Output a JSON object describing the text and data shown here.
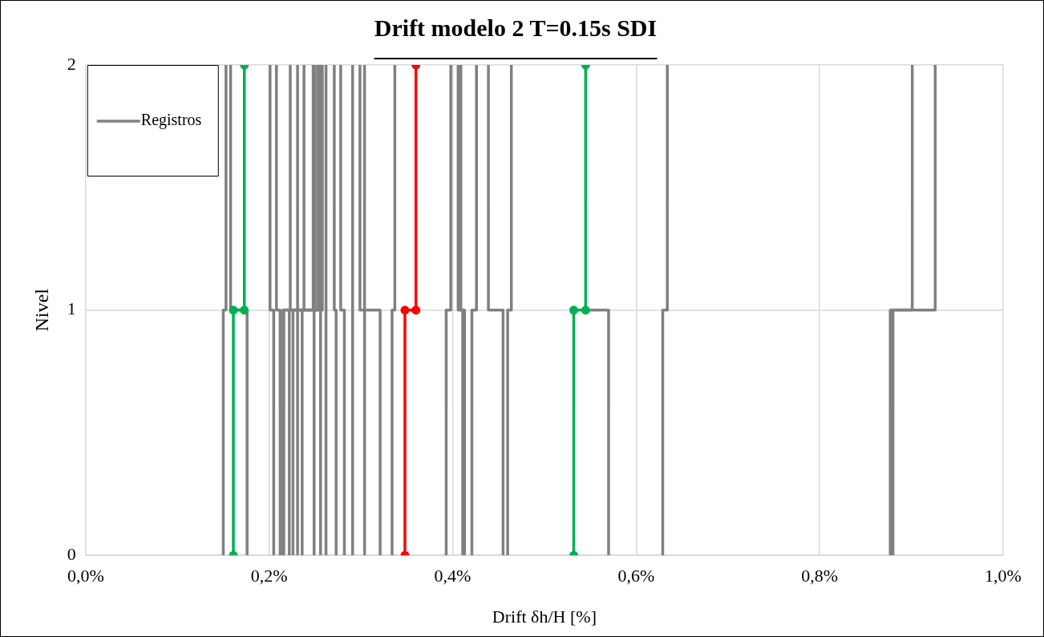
{
  "chart_data": {
    "type": "line",
    "title": "Drift modelo 2 T=0.15s SDI",
    "xlabel": "Drift δh/H [%]",
    "ylabel": "Nivel",
    "xlim": [
      0,
      1
    ],
    "xticks": [
      {
        "value": 0,
        "label": "0,0%"
      },
      {
        "value": 0.2,
        "label": "0,2%"
      },
      {
        "value": 0.4,
        "label": "0,4%"
      },
      {
        "value": 0.6,
        "label": "0,6%"
      },
      {
        "value": 0.8,
        "label": "0,8%"
      },
      {
        "value": 1,
        "label": "1,0%"
      }
    ],
    "ylim": [
      0,
      2
    ],
    "yticks": [
      0,
      1,
      2
    ],
    "grid": true,
    "legend": "top left",
    "line_style": "solid",
    "series": [
      {
        "name": "Registros",
        "color": "#808080",
        "marker": "none",
        "x": [
          0.15,
          0.15,
          0.153,
          0.153
        ],
        "values": [
          0,
          1,
          1,
          2
        ]
      },
      {
        "color": "#808080",
        "marker": "none",
        "x": [
          0.176,
          0.176,
          0.158,
          0.158
        ],
        "values": [
          0,
          1,
          1,
          2
        ]
      },
      {
        "color": "#808080",
        "marker": "none",
        "x": [
          0.205,
          0.205,
          0.201,
          0.201
        ],
        "values": [
          0,
          1,
          1,
          2
        ]
      },
      {
        "color": "#808080",
        "marker": "none",
        "x": [
          0.212,
          0.212,
          0.208,
          0.208
        ],
        "values": [
          0,
          1,
          1,
          2
        ]
      },
      {
        "color": "#808080",
        "marker": "none",
        "x": [
          0.215,
          0.215,
          0.223,
          0.223
        ],
        "values": [
          0,
          1,
          1,
          2
        ]
      },
      {
        "color": "#808080",
        "marker": "none",
        "x": [
          0.216,
          0.216,
          0.231,
          0.231
        ],
        "values": [
          0,
          1,
          1,
          2
        ]
      },
      {
        "color": "#808080",
        "marker": "none",
        "x": [
          0.222,
          0.222,
          0.238,
          0.238
        ],
        "values": [
          0,
          1,
          1,
          2
        ]
      },
      {
        "color": "#808080",
        "marker": "none",
        "x": [
          0.226,
          0.226,
          0.248,
          0.248
        ],
        "values": [
          0,
          1,
          1,
          2
        ]
      },
      {
        "color": "#808080",
        "marker": "none",
        "x": [
          0.231,
          0.231,
          0.25,
          0.25
        ],
        "values": [
          0,
          1,
          1,
          2
        ]
      },
      {
        "color": "#808080",
        "marker": "none",
        "x": [
          0.236,
          0.236,
          0.253,
          0.253
        ],
        "values": [
          0,
          1,
          1,
          2
        ]
      },
      {
        "color": "#808080",
        "marker": "none",
        "x": [
          0.249,
          0.249,
          0.256,
          0.256
        ],
        "values": [
          0,
          1,
          1,
          2
        ]
      },
      {
        "color": "#808080",
        "marker": "none",
        "x": [
          0.256,
          0.256,
          0.258,
          0.258
        ],
        "values": [
          0,
          1,
          1,
          2
        ]
      },
      {
        "color": "#808080",
        "marker": "none",
        "x": [
          0.262,
          0.262,
          0.262,
          0.262
        ],
        "values": [
          0,
          1,
          1,
          2
        ]
      },
      {
        "color": "#808080",
        "marker": "none",
        "x": [
          0.273,
          0.273,
          0.271,
          0.271
        ],
        "values": [
          0,
          1,
          1,
          2
        ]
      },
      {
        "color": "#808080",
        "marker": "none",
        "x": [
          0.282,
          0.282,
          0.278,
          0.278
        ],
        "values": [
          0,
          1,
          1,
          2
        ]
      },
      {
        "color": "#808080",
        "marker": "none",
        "x": [
          0.291,
          0.291,
          0.291,
          0.291
        ],
        "values": [
          0,
          1,
          1,
          2
        ]
      },
      {
        "color": "#808080",
        "marker": "none",
        "x": [
          0.304,
          0.304,
          0.299,
          0.299
        ],
        "values": [
          0,
          1,
          1,
          2
        ]
      },
      {
        "color": "#808080",
        "marker": "none",
        "x": [
          0.321,
          0.321,
          0.304,
          0.304
        ],
        "values": [
          0,
          1,
          1,
          2
        ]
      },
      {
        "color": "#808080",
        "marker": "none",
        "x": [
          0.334,
          0.334,
          0.337,
          0.337
        ],
        "values": [
          0,
          1,
          1,
          2
        ]
      },
      {
        "color": "#808080",
        "marker": "none",
        "x": [
          0.393,
          0.393,
          0.398,
          0.398
        ],
        "values": [
          0,
          1,
          1,
          2
        ]
      },
      {
        "color": "#808080",
        "marker": "none",
        "x": [
          0.411,
          0.411,
          0.406,
          0.406
        ],
        "values": [
          0,
          1,
          1,
          2
        ]
      },
      {
        "color": "#808080",
        "marker": "none",
        "x": [
          0.413,
          0.413,
          0.409,
          0.409
        ],
        "values": [
          0,
          1,
          1,
          2
        ]
      },
      {
        "color": "#808080",
        "marker": "none",
        "x": [
          0.421,
          0.421,
          0.426,
          0.426
        ],
        "values": [
          0,
          1,
          1,
          2
        ]
      },
      {
        "color": "#808080",
        "marker": "none",
        "x": [
          0.455,
          0.455,
          0.439,
          0.439
        ],
        "values": [
          0,
          1,
          1,
          2
        ]
      },
      {
        "color": "#808080",
        "marker": "none",
        "x": [
          0.46,
          0.46,
          0.464,
          0.464
        ],
        "values": [
          0,
          1,
          1,
          2
        ]
      },
      {
        "color": "#808080",
        "marker": "none",
        "x": [
          0.57,
          0.57,
          0.546
        ],
        "values": [
          0,
          1,
          1
        ]
      },
      {
        "color": "#808080",
        "marker": "none",
        "x": [
          0.629,
          0.629,
          0.634,
          0.634
        ],
        "values": [
          0,
          1,
          1,
          2
        ]
      },
      {
        "color": "#808080",
        "marker": "none",
        "x": [
          0.877,
          0.877,
          0.901,
          0.901
        ],
        "values": [
          0,
          1,
          1,
          2
        ]
      },
      {
        "color": "#808080",
        "marker": "none",
        "x": [
          0.88,
          0.88,
          0.926,
          0.926
        ],
        "values": [
          0,
          1,
          1,
          2
        ]
      },
      {
        "color": "#ff0000",
        "marker": "circle",
        "x": [
          0.348,
          0.348,
          0.36,
          0.36
        ],
        "values": [
          0,
          1,
          1,
          2
        ]
      },
      {
        "color": "#00b050",
        "marker": "circle",
        "x": [
          0.161,
          0.161,
          0.173,
          0.173
        ],
        "values": [
          0,
          1,
          1,
          2
        ]
      },
      {
        "color": "#00b050",
        "marker": "circle",
        "x": [
          0.532,
          0.532,
          0.545,
          0.545
        ],
        "values": [
          0,
          1,
          1,
          2
        ]
      }
    ]
  }
}
